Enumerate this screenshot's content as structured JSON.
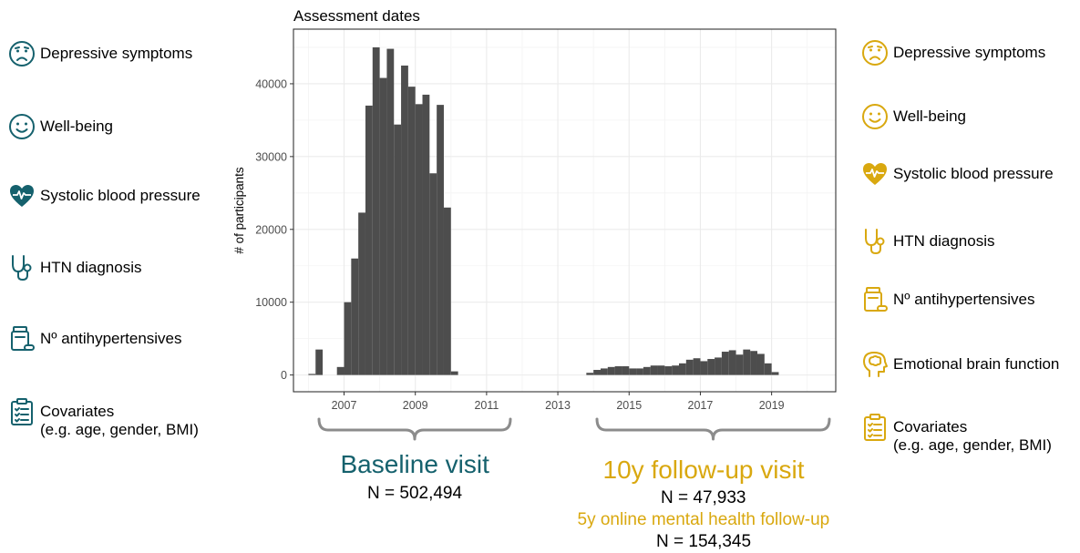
{
  "colors": {
    "teal": "#15616d",
    "gold": "#d9a80f",
    "bar": "#4d4d4d",
    "panel_border": "#333333",
    "grid": "#ebebeb"
  },
  "left_legend": [
    {
      "icon": "sad-face-icon",
      "label": "Depressive symptoms"
    },
    {
      "icon": "smile-face-icon",
      "label": "Well-being"
    },
    {
      "icon": "heart-pulse-icon",
      "label": "Systolic blood pressure"
    },
    {
      "icon": "stethoscope-icon",
      "label": "HTN diagnosis"
    },
    {
      "icon": "pill-bottle-icon",
      "label": "Nº antihypertensives"
    },
    {
      "icon": "clipboard-icon",
      "label": "Covariates",
      "sub": "(e.g. age, gender, BMI)"
    }
  ],
  "right_legend": [
    {
      "icon": "sad-face-icon",
      "label": "Depressive symptoms"
    },
    {
      "icon": "smile-face-icon",
      "label": "Well-being"
    },
    {
      "icon": "heart-pulse-icon",
      "label": "Systolic blood pressure"
    },
    {
      "icon": "stethoscope-icon",
      "label": "HTN diagnosis"
    },
    {
      "icon": "pill-bottle-icon",
      "label": "Nº antihypertensives"
    },
    {
      "icon": "brain-icon",
      "label": "Emotional brain function"
    },
    {
      "icon": "clipboard-icon",
      "label": "Covariates",
      "sub": "(e.g. age, gender, BMI)"
    }
  ],
  "baseline": {
    "title": "Baseline visit",
    "n": "N = 502,494"
  },
  "followup": {
    "title": "10y follow-up visit",
    "n": "N = 47,933",
    "online": "5y online mental health follow-up",
    "online_n": "N = 154,345"
  },
  "chart_data": {
    "type": "bar",
    "title": "Assessment dates",
    "xlabel": "",
    "ylabel": "# of participants",
    "xlim": [
      2005.58,
      2020.8
    ],
    "ylim": [
      -2300,
      47500
    ],
    "x_ticks": [
      2007,
      2009,
      2011,
      2013,
      2015,
      2017,
      2019
    ],
    "y_ticks": [
      0,
      10000,
      20000,
      30000,
      40000
    ],
    "grid": true,
    "bin_width": 0.2,
    "bins": [
      {
        "x": 2006.0,
        "y": 150
      },
      {
        "x": 2006.2,
        "y": 3500
      },
      {
        "x": 2006.4,
        "y": 0
      },
      {
        "x": 2006.6,
        "y": 0
      },
      {
        "x": 2006.8,
        "y": 1100
      },
      {
        "x": 2007.0,
        "y": 10000
      },
      {
        "x": 2007.2,
        "y": 16000
      },
      {
        "x": 2007.4,
        "y": 22300
      },
      {
        "x": 2007.6,
        "y": 37000
      },
      {
        "x": 2007.8,
        "y": 45000
      },
      {
        "x": 2008.0,
        "y": 40800
      },
      {
        "x": 2008.2,
        "y": 44800
      },
      {
        "x": 2008.4,
        "y": 34400
      },
      {
        "x": 2008.6,
        "y": 42500
      },
      {
        "x": 2008.8,
        "y": 39600
      },
      {
        "x": 2009.0,
        "y": 37200
      },
      {
        "x": 2009.2,
        "y": 38500
      },
      {
        "x": 2009.4,
        "y": 27700
      },
      {
        "x": 2009.6,
        "y": 37100
      },
      {
        "x": 2009.8,
        "y": 23000
      },
      {
        "x": 2010.0,
        "y": 500
      },
      {
        "x": 2013.8,
        "y": 300
      },
      {
        "x": 2014.0,
        "y": 700
      },
      {
        "x": 2014.2,
        "y": 900
      },
      {
        "x": 2014.4,
        "y": 1100
      },
      {
        "x": 2014.6,
        "y": 1200
      },
      {
        "x": 2014.8,
        "y": 1200
      },
      {
        "x": 2015.0,
        "y": 900
      },
      {
        "x": 2015.2,
        "y": 900
      },
      {
        "x": 2015.4,
        "y": 1100
      },
      {
        "x": 2015.6,
        "y": 1300
      },
      {
        "x": 2015.8,
        "y": 1300
      },
      {
        "x": 2016.0,
        "y": 1200
      },
      {
        "x": 2016.2,
        "y": 1300
      },
      {
        "x": 2016.4,
        "y": 1600
      },
      {
        "x": 2016.6,
        "y": 2100
      },
      {
        "x": 2016.8,
        "y": 2300
      },
      {
        "x": 2017.0,
        "y": 1900
      },
      {
        "x": 2017.2,
        "y": 2200
      },
      {
        "x": 2017.4,
        "y": 2400
      },
      {
        "x": 2017.6,
        "y": 3200
      },
      {
        "x": 2017.8,
        "y": 3400
      },
      {
        "x": 2018.0,
        "y": 2800
      },
      {
        "x": 2018.2,
        "y": 3500
      },
      {
        "x": 2018.4,
        "y": 3300
      },
      {
        "x": 2018.6,
        "y": 2900
      },
      {
        "x": 2018.8,
        "y": 1600
      },
      {
        "x": 2019.0,
        "y": 400
      }
    ]
  }
}
